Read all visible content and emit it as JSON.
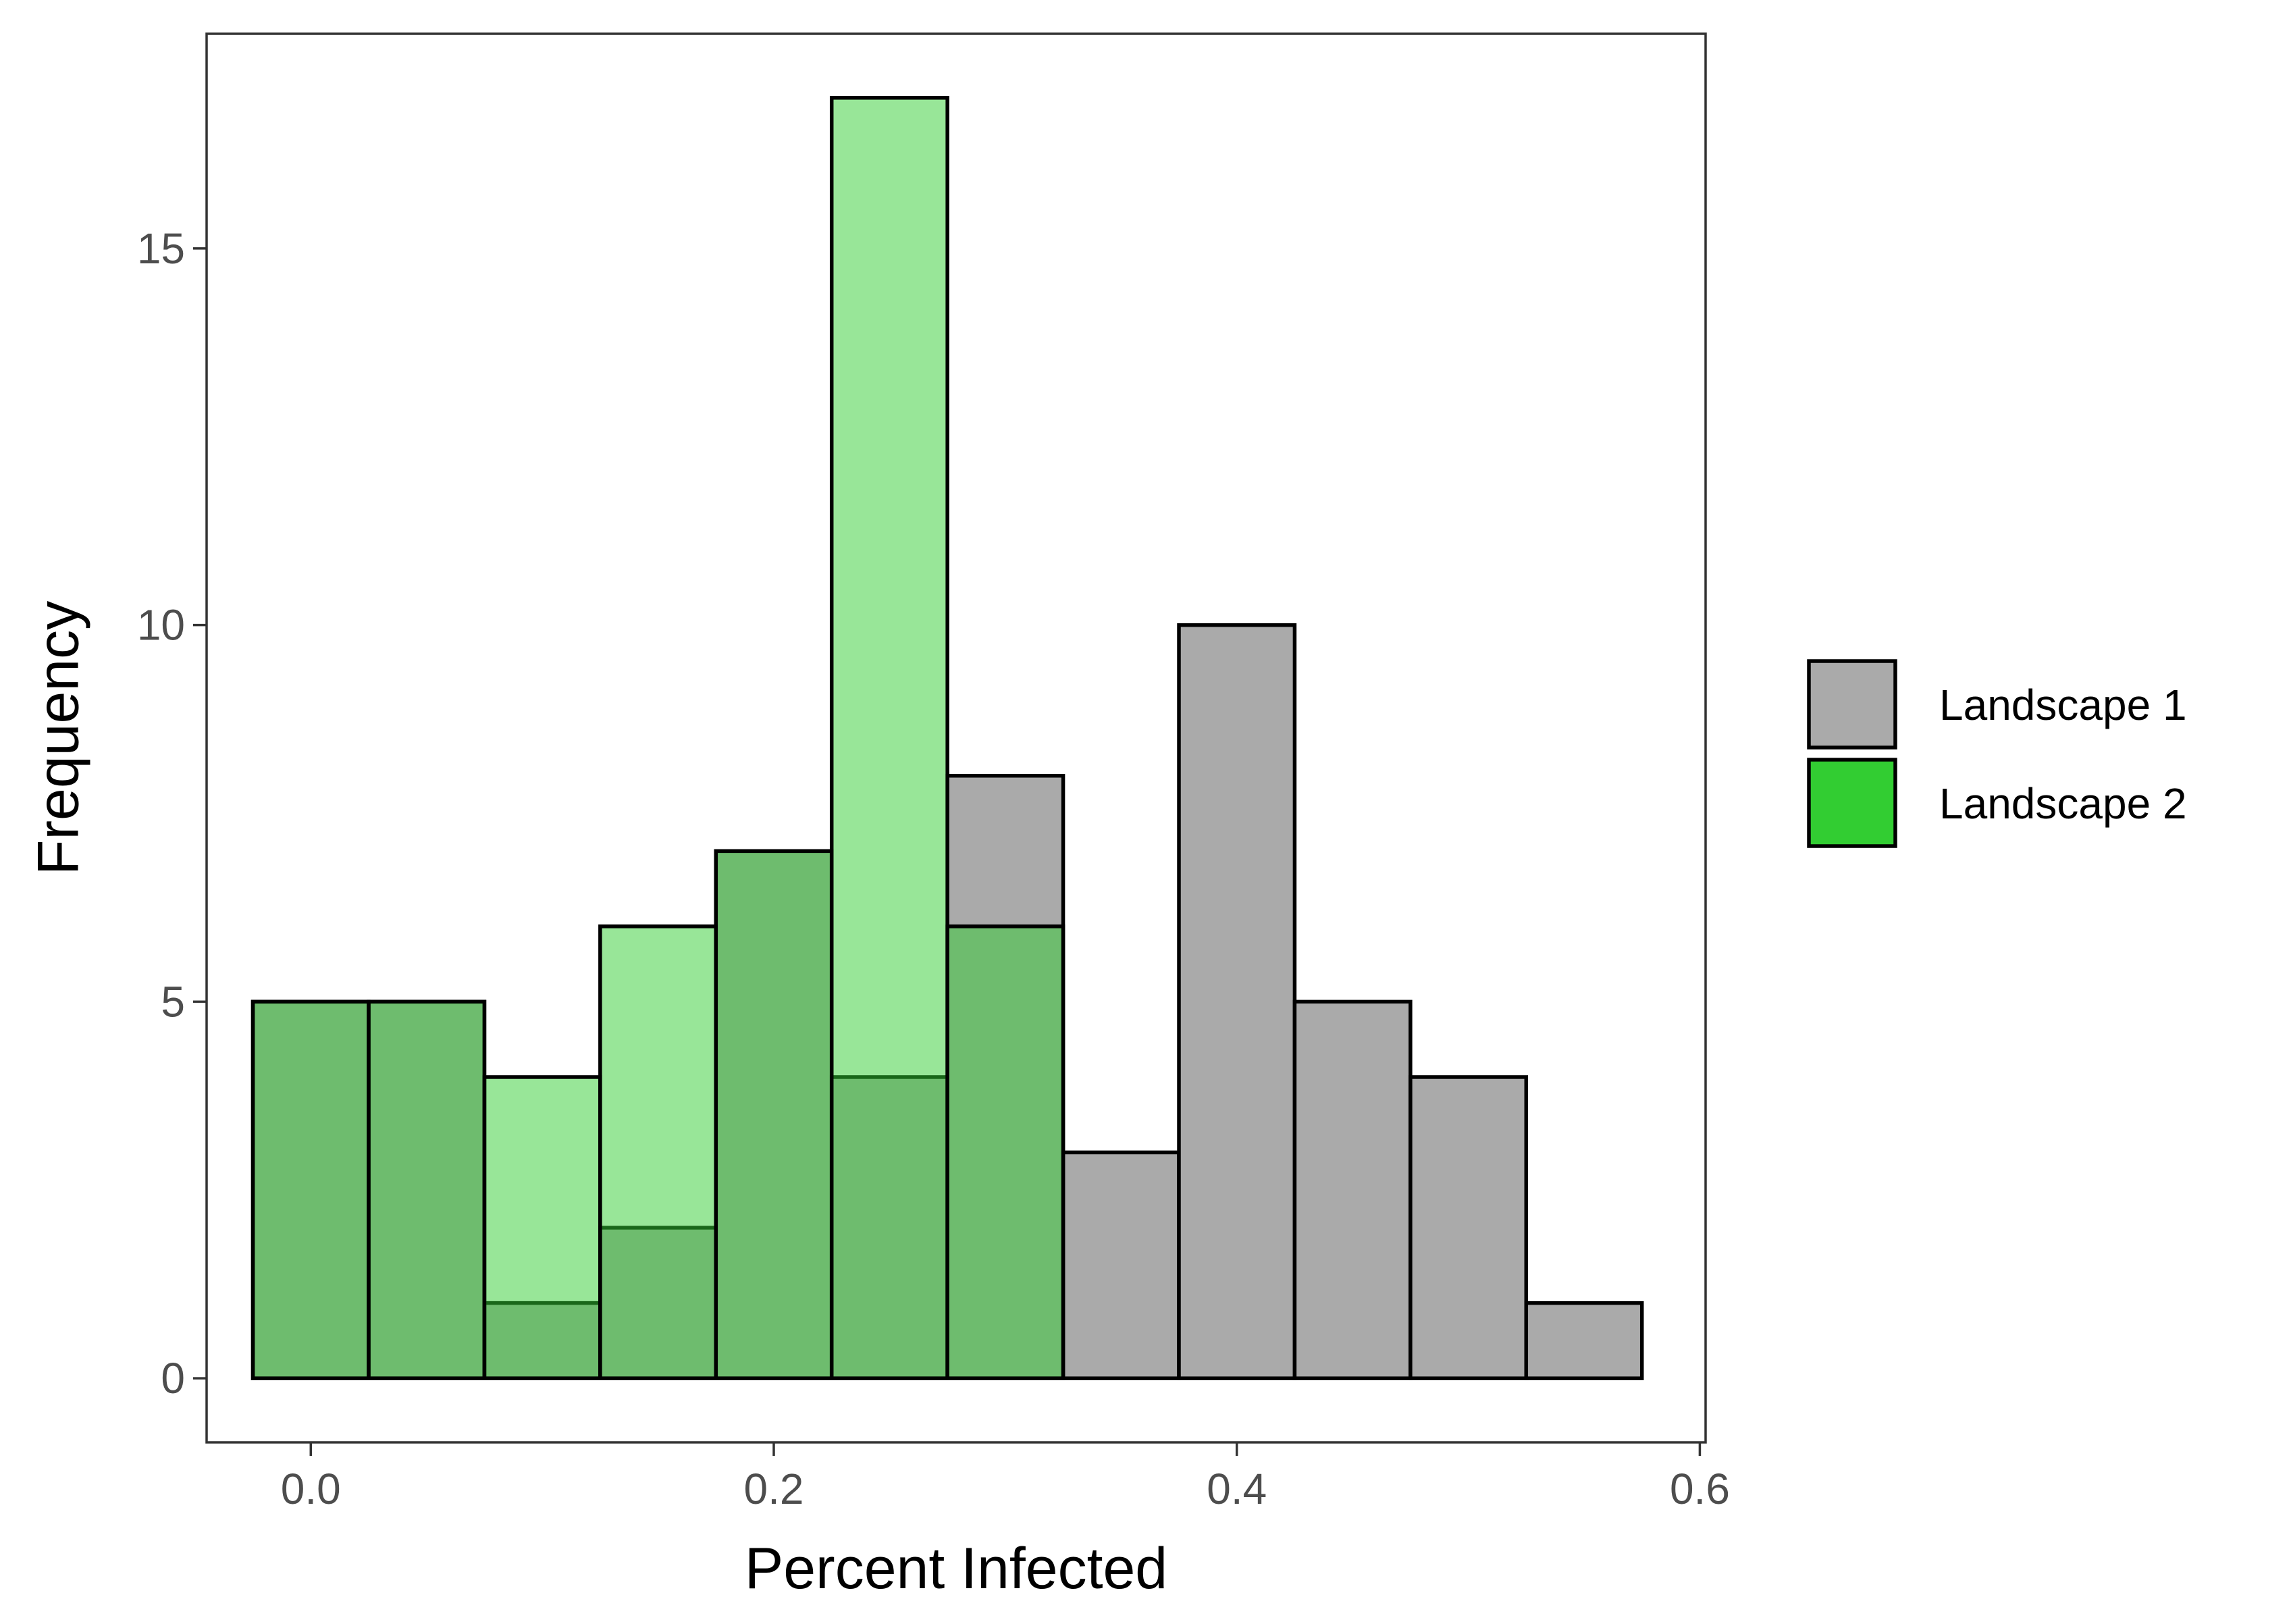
{
  "chart_data": {
    "type": "bar",
    "title": "",
    "xlabel": "Percent Infected",
    "ylabel": "Frequency",
    "xlim": [
      -0.045,
      0.6025
    ],
    "ylim": [
      -0.85,
      17.85
    ],
    "x_ticks": [
      0.0,
      0.2,
      0.4,
      0.6
    ],
    "x_tick_labels": [
      "0.0",
      "0.2",
      "0.4",
      "0.6"
    ],
    "y_ticks": [
      0,
      5,
      10,
      15
    ],
    "y_tick_labels": [
      "0",
      "5",
      "10",
      "15"
    ],
    "bin_width": 0.05,
    "bin_centers": [
      0.0,
      0.05,
      0.1,
      0.15,
      0.2,
      0.25,
      0.3,
      0.35,
      0.4,
      0.45,
      0.5,
      0.55
    ],
    "grid": false,
    "legend_position": "right",
    "series": [
      {
        "name": "Landscape 1",
        "color": "#aaaaaa",
        "opacity": 1.0,
        "values": [
          5,
          5,
          1,
          2,
          7,
          4,
          8,
          3,
          10,
          5,
          4,
          1
        ]
      },
      {
        "name": "Landscape 2",
        "color": "#32cd32",
        "opacity": 0.5,
        "values": [
          5,
          5,
          4,
          6,
          7,
          17,
          6,
          0,
          0,
          0,
          0,
          0
        ]
      }
    ]
  },
  "colors": {
    "axis_text": "#4d4d4d",
    "title_text": "#000000",
    "panel_border": "#333333",
    "bar_outline": "#000000",
    "background": "#ffffff"
  }
}
